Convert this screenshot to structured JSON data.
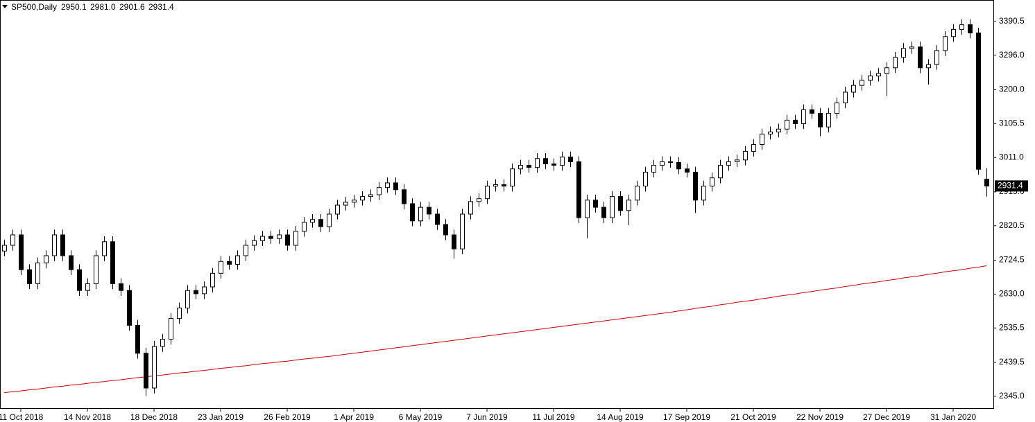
{
  "header": {
    "symbol": "SP500,Daily",
    "ohlc": [
      "2950.1",
      "2981.0",
      "2901.6",
      "2931.4"
    ]
  },
  "chart_data": {
    "type": "candlestick",
    "categories": [
      null,
      null,
      "11 Oct 2018",
      null,
      null,
      null,
      null,
      null,
      null,
      null,
      "14 Nov 2018",
      null,
      null,
      null,
      null,
      null,
      null,
      null,
      "18 Dec 2018",
      null,
      null,
      null,
      null,
      null,
      null,
      null,
      "23 Jan 2019",
      null,
      null,
      null,
      null,
      null,
      null,
      null,
      "26 Feb 2019",
      null,
      null,
      null,
      null,
      null,
      null,
      null,
      "1 Apr 2019",
      null,
      null,
      null,
      null,
      null,
      null,
      null,
      "6 May 2019",
      null,
      null,
      null,
      null,
      null,
      null,
      null,
      "7 Jun 2019",
      null,
      null,
      null,
      null,
      null,
      null,
      null,
      "11 Jul 2019",
      null,
      null,
      null,
      null,
      null,
      null,
      null,
      "14 Aug 2019",
      null,
      null,
      null,
      null,
      null,
      null,
      null,
      "17 Sep 2019",
      null,
      null,
      null,
      null,
      null,
      null,
      null,
      "21 Oct 2019",
      null,
      null,
      null,
      null,
      null,
      null,
      null,
      "22 Nov 2019",
      null,
      null,
      null,
      null,
      null,
      null,
      null,
      "27 Dec 2019",
      null,
      null,
      null,
      null,
      null,
      null,
      null,
      "31 Jan 2020",
      null,
      null,
      null,
      null
    ],
    "open": [
      2750,
      2766,
      2795,
      2698,
      2659,
      2717,
      2737,
      2795,
      2737,
      2698,
      2640,
      2659,
      2737,
      2776,
      2659,
      2640,
      2543,
      2465,
      2368,
      2484,
      2504,
      2562,
      2591,
      2640,
      2631,
      2650,
      2688,
      2721,
      2713,
      2737,
      2766,
      2779,
      2791,
      2785,
      2795,
      2766,
      2805,
      2830,
      2838,
      2818,
      2853,
      2878,
      2886,
      2892,
      2902,
      2907,
      2927,
      2940,
      2921,
      2882,
      2834,
      2872,
      2853,
      2824,
      2795,
      2756,
      2853,
      2888,
      2896,
      2931,
      2935,
      2931,
      2979,
      2989,
      2983,
      3008,
      2993,
      2989,
      3012,
      2999,
      2843,
      2892,
      2872,
      2843,
      2902,
      2863,
      2892,
      2931,
      2970,
      2989,
      2999,
      2997,
      2979,
      2970,
      2892,
      2931,
      2954,
      2989,
      2999,
      3004,
      3028,
      3047,
      3076,
      3082,
      3090,
      3115,
      3105,
      3144,
      3134,
      3096,
      3134,
      3163,
      3193,
      3212,
      3226,
      3238,
      3245,
      3261,
      3290,
      3315,
      3319,
      3261,
      3270,
      3309,
      3348,
      3368,
      3381,
      3358,
      2950.1
    ],
    "high": [
      2781,
      2810,
      2810,
      2713,
      2732,
      2752,
      2810,
      2810,
      2752,
      2713,
      2674,
      2752,
      2791,
      2791,
      2674,
      2655,
      2558,
      2480,
      2499,
      2519,
      2577,
      2606,
      2655,
      2655,
      2665,
      2703,
      2736,
      2736,
      2752,
      2781,
      2794,
      2806,
      2806,
      2810,
      2810,
      2820,
      2845,
      2853,
      2853,
      2868,
      2893,
      2901,
      2907,
      2917,
      2922,
      2942,
      2955,
      2955,
      2936,
      2897,
      2887,
      2887,
      2868,
      2839,
      2810,
      2868,
      2903,
      2911,
      2946,
      2950,
      2950,
      2994,
      3004,
      3004,
      3023,
      3023,
      3008,
      3027,
      3027,
      3014,
      2907,
      2907,
      2887,
      2917,
      2917,
      2907,
      2946,
      2985,
      3004,
      3014,
      3014,
      3012,
      2994,
      2985,
      2946,
      2969,
      3004,
      3014,
      3019,
      3043,
      3062,
      3091,
      3097,
      3105,
      3130,
      3130,
      3159,
      3159,
      3149,
      3149,
      3178,
      3208,
      3227,
      3241,
      3253,
      3260,
      3276,
      3305,
      3330,
      3334,
      3334,
      3285,
      3324,
      3363,
      3383,
      3396,
      3396,
      3373,
      2981.0
    ],
    "low": [
      2735,
      2751,
      2683,
      2644,
      2644,
      2702,
      2722,
      2722,
      2683,
      2625,
      2625,
      2644,
      2722,
      2644,
      2625,
      2528,
      2450,
      2346,
      2353,
      2469,
      2489,
      2547,
      2576,
      2616,
      2616,
      2635,
      2673,
      2698,
      2698,
      2722,
      2751,
      2764,
      2770,
      2770,
      2751,
      2751,
      2790,
      2815,
      2803,
      2803,
      2838,
      2863,
      2871,
      2877,
      2887,
      2892,
      2912,
      2906,
      2867,
      2819,
      2819,
      2838,
      2809,
      2780,
      2729,
      2741,
      2838,
      2873,
      2881,
      2916,
      2916,
      2916,
      2964,
      2968,
      2968,
      2978,
      2974,
      2974,
      2984,
      2828,
      2785,
      2857,
      2828,
      2828,
      2848,
      2822,
      2877,
      2916,
      2955,
      2974,
      2982,
      2964,
      2955,
      2856,
      2877,
      2916,
      2939,
      2974,
      2984,
      2989,
      3013,
      3032,
      3061,
      3067,
      3075,
      3090,
      3090,
      3119,
      3070,
      3081,
      3119,
      3148,
      3178,
      3197,
      3211,
      3223,
      3182,
      3246,
      3275,
      3300,
      3246,
      3214,
      3255,
      3294,
      3333,
      3353,
      3343,
      2963,
      2901.6
    ],
    "close": [
      2766,
      2795,
      2698,
      2659,
      2717,
      2737,
      2795,
      2737,
      2698,
      2640,
      2659,
      2737,
      2776,
      2659,
      2640,
      2543,
      2465,
      2368,
      2484,
      2504,
      2562,
      2591,
      2640,
      2631,
      2650,
      2688,
      2721,
      2713,
      2737,
      2766,
      2779,
      2791,
      2785,
      2795,
      2766,
      2805,
      2830,
      2838,
      2818,
      2853,
      2878,
      2886,
      2892,
      2902,
      2907,
      2927,
      2940,
      2921,
      2882,
      2834,
      2872,
      2853,
      2824,
      2795,
      2756,
      2853,
      2888,
      2896,
      2931,
      2935,
      2931,
      2979,
      2989,
      2983,
      3008,
      2993,
      2989,
      3012,
      2999,
      2843,
      2892,
      2872,
      2843,
      2902,
      2863,
      2892,
      2931,
      2970,
      2989,
      2999,
      2997,
      2979,
      2970,
      2892,
      2931,
      2954,
      2989,
      2999,
      3004,
      3028,
      3047,
      3076,
      3082,
      3090,
      3115,
      3105,
      3144,
      3134,
      3096,
      3134,
      3163,
      3193,
      3212,
      3226,
      3238,
      3245,
      3261,
      3290,
      3315,
      3319,
      3261,
      3270,
      3309,
      3348,
      3368,
      3381,
      3358,
      2978,
      2931.4
    ],
    "line": {
      "color": "#cc0000",
      "values": [
        2355,
        2358,
        2360,
        2363,
        2365,
        2368,
        2371,
        2373,
        2376,
        2378,
        2381,
        2384,
        2386,
        2389,
        2391,
        2394,
        2397,
        2399,
        2402,
        2404,
        2407,
        2410,
        2412,
        2415,
        2417,
        2420,
        2423,
        2425,
        2428,
        2430,
        2433,
        2436,
        2438,
        2441,
        2443,
        2446,
        2449,
        2451,
        2454,
        2456,
        2459,
        2462,
        2465,
        2468,
        2471,
        2474,
        2477,
        2480,
        2483,
        2486,
        2489,
        2492,
        2495,
        2498,
        2501,
        2504,
        2507,
        2510,
        2513,
        2516,
        2519,
        2522,
        2525,
        2528,
        2531,
        2534,
        2537,
        2540,
        2543,
        2546,
        2549,
        2552,
        2555,
        2558,
        2561,
        2564,
        2567,
        2570,
        2573,
        2576,
        2579,
        2583,
        2586,
        2590,
        2593,
        2596,
        2600,
        2603,
        2607,
        2610,
        2613,
        2617,
        2620,
        2624,
        2627,
        2630,
        2634,
        2637,
        2641,
        2644,
        2647,
        2651,
        2654,
        2658,
        2661,
        2664,
        2668,
        2671,
        2675,
        2678,
        2681,
        2685,
        2688,
        2692,
        2695,
        2698,
        2702,
        2705,
        2709
      ]
    },
    "up_color": "#ffffff",
    "down_color": "#000000",
    "ylim": [
      2310,
      3448
    ],
    "yticks": [
      3390.5,
      {
        "value": 3296,
        "label": "3296.0"
      },
      {
        "value": 3200,
        "label": "3200.0"
      },
      3105.5,
      {
        "value": 3011,
        "label": "3011.0"
      },
      {
        "value": 2915,
        "label": "2915.0"
      },
      2820.5,
      2724.5,
      {
        "value": 2630,
        "label": "2630.0"
      },
      2535.5,
      2439.5,
      {
        "value": 2345,
        "label": "2345.0"
      }
    ]
  }
}
